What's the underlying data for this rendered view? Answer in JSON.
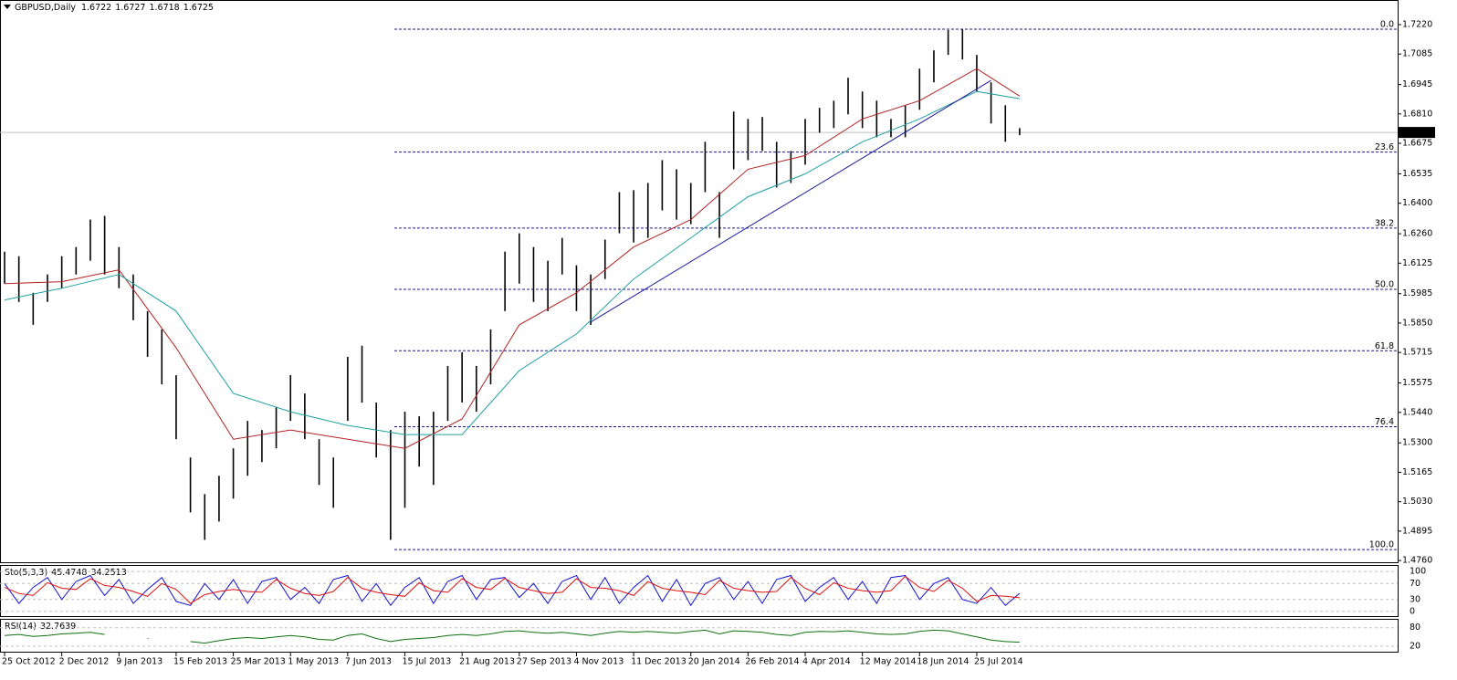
{
  "chart_data": {
    "type": "ohlc",
    "title": "GBPUSD,Daily",
    "quote": [
      1.6722,
      1.6727,
      1.6718,
      1.6725
    ],
    "color": "#000000",
    "high": [
      1.6178,
      1.6157,
      1.5989,
      1.6073,
      1.6157,
      1.6199,
      1.6325,
      1.6342,
      1.6199,
      1.6073,
      1.5905,
      1.5821,
      1.5611,
      1.5233,
      1.5065,
      1.5149,
      1.5275,
      1.5401,
      1.5359,
      1.5464,
      1.5611,
      1.5527,
      1.5317,
      1.5233,
      1.5695,
      1.5746,
      1.5485,
      1.5359,
      1.5443,
      1.5422,
      1.5443,
      1.5653,
      1.5716,
      1.5653,
      1.5821,
      1.6178,
      1.6262,
      1.6199,
      1.6136,
      1.6241,
      1.6115,
      1.6073,
      1.6233,
      1.6451,
      1.646,
      1.6493,
      1.6598,
      1.6556,
      1.6493,
      1.6682,
      1.6451,
      1.6821,
      1.6787,
      1.6796,
      1.6682,
      1.664,
      1.6787,
      1.6838,
      1.6871,
      1.6976,
      1.6913,
      1.6871,
      1.6787,
      1.685,
      1.7018,
      1.7102,
      1.7195,
      1.7199,
      1.7081,
      1.6955,
      1.685,
      1.6745
    ],
    "low": [
      1.6031,
      1.5947,
      1.5842,
      1.5947,
      1.601,
      1.6073,
      1.6136,
      1.6073,
      1.601,
      1.5863,
      1.5695,
      1.5569,
      1.5317,
      1.4981,
      1.4855,
      1.4939,
      1.5044,
      1.5149,
      1.5212,
      1.5275,
      1.5401,
      1.5317,
      1.5107,
      1.5002,
      1.5401,
      1.5485,
      1.5233,
      1.4855,
      1.5002,
      1.5191,
      1.5107,
      1.5401,
      1.5485,
      1.5443,
      1.5569,
      1.5905,
      1.6031,
      1.5947,
      1.5905,
      1.6073,
      1.5905,
      1.5842,
      1.6052,
      1.6262,
      1.622,
      1.6241,
      1.6367,
      1.6325,
      1.6304,
      1.6451,
      1.6241,
      1.6556,
      1.6598,
      1.664,
      1.6472,
      1.6493,
      1.6577,
      1.6724,
      1.6745,
      1.6808,
      1.6745,
      1.6703,
      1.6703,
      1.6703,
      1.6829,
      1.6955,
      1.7081,
      1.706,
      1.6913,
      1.6766,
      1.6682,
      1.6712
    ],
    "xlim": [
      -0.32,
      97.44
    ],
    "xticks": [
      {
        "value": 0,
        "label": "25 Oct 2012"
      },
      {
        "value": 4,
        "label": "2 Dec 2012"
      },
      {
        "value": 8,
        "label": "9 Jan 2013"
      },
      {
        "value": 12,
        "label": "15 Feb 2013"
      },
      {
        "value": 16,
        "label": "25 Mar 2013"
      },
      {
        "value": 20,
        "label": "1 May 2013"
      },
      {
        "value": 24,
        "label": "7 Jun 2013"
      },
      {
        "value": 28,
        "label": "15 Jul 2013"
      },
      {
        "value": 32,
        "label": "21 Aug 2013"
      },
      {
        "value": 36,
        "label": "27 Sep 2013"
      },
      {
        "value": 40,
        "label": "4 Nov 2013"
      },
      {
        "value": 44,
        "label": "11 Dec 2013"
      },
      {
        "value": 48,
        "label": "20 Jan 2014"
      },
      {
        "value": 52,
        "label": "26 Feb 2014"
      },
      {
        "value": 56,
        "label": "4 Apr 2014"
      },
      {
        "value": 60,
        "label": "12 May 2014"
      },
      {
        "value": 64,
        "label": "18 Jun 2014"
      },
      {
        "value": 68,
        "label": "25 Jul 2014"
      }
    ],
    "ylim": [
      1.4752,
      1.7333
    ],
    "yticks": [
      {
        "value": 1.722,
        "label": "1.7220"
      },
      {
        "value": 1.7085,
        "label": "1.7085"
      },
      {
        "value": 1.6945,
        "label": "1.6945"
      },
      {
        "value": 1.681,
        "label": "1.6810"
      },
      {
        "value": 1.6675,
        "label": "1.6675"
      },
      {
        "value": 1.6535,
        "label": "1.6535"
      },
      {
        "value": 1.64,
        "label": "1.6400"
      },
      {
        "value": 1.626,
        "label": "1.6260"
      },
      {
        "value": 1.6125,
        "label": "1.6125"
      },
      {
        "value": 1.5985,
        "label": "1.5985"
      },
      {
        "value": 1.585,
        "label": "1.5850"
      },
      {
        "value": 1.5715,
        "label": "1.5715"
      },
      {
        "value": 1.5575,
        "label": "1.5575"
      },
      {
        "value": 1.544,
        "label": "1.5440"
      },
      {
        "value": 1.53,
        "label": "1.5300"
      },
      {
        "value": 1.5165,
        "label": "1.5165"
      },
      {
        "value": 1.503,
        "label": "1.5030"
      },
      {
        "value": 1.4895,
        "label": "1.4895"
      },
      {
        "value": 1.476,
        "label": "1.4760"
      }
    ],
    "current_price": 1.6725,
    "fib_color": "#1a1a9a",
    "fib_levels": [
      {
        "label": "0.0",
        "value": 1.7199
      },
      {
        "label": "23.6",
        "value": 1.6635
      },
      {
        "label": "38.2",
        "value": 1.6286
      },
      {
        "label": "50.0",
        "value": 1.6005
      },
      {
        "label": "61.8",
        "value": 1.5723
      },
      {
        "label": "76.4",
        "value": 1.5374
      },
      {
        "label": "100.0",
        "value": 1.481
      }
    ],
    "series": [
      {
        "color": "#b22222",
        "x": [
          0,
          4,
          8,
          12,
          16,
          20,
          24,
          28,
          32,
          36,
          40,
          44,
          48,
          52,
          56,
          60,
          64,
          68,
          71
        ],
        "values": [
          1.6031,
          1.604,
          1.6094,
          1.5737,
          1.5317,
          1.5359,
          1.5317,
          1.5275,
          1.541,
          1.5842,
          1.5989,
          1.6199,
          1.6325,
          1.6556,
          1.6619,
          1.6787,
          1.6871,
          1.7018,
          1.6892
        ]
      },
      {
        "color": "#20a0a0",
        "x": [
          0,
          4,
          8,
          12,
          16,
          20,
          24,
          28,
          32,
          36,
          40,
          44,
          48,
          52,
          56,
          60,
          64,
          68,
          71
        ],
        "values": [
          1.5956,
          1.601,
          1.6073,
          1.5905,
          1.5527,
          1.5443,
          1.538,
          1.5338,
          1.5338,
          1.5632,
          1.58,
          1.6052,
          1.6241,
          1.643,
          1.6535,
          1.6682,
          1.6787,
          1.6913,
          1.688
        ]
      }
    ],
    "trendline": {
      "color": "#1a1a9a",
      "x": [
        41,
        69
      ],
      "values": [
        1.5855,
        1.6964
      ]
    },
    "stochastic": {
      "title": "Sto(5,3,3)",
      "readings": [
        45.4748,
        34.2513
      ],
      "ylim": [
        -14,
        114
      ],
      "yticks": [
        100,
        70,
        30,
        0
      ],
      "series": [
        {
          "color": "#1010d0",
          "values": [
            70,
            20,
            60,
            85,
            30,
            75,
            90,
            40,
            80,
            20,
            55,
            85,
            25,
            15,
            70,
            30,
            80,
            20,
            75,
            85,
            30,
            60,
            20,
            80,
            90,
            25,
            70,
            15,
            60,
            85,
            20,
            75,
            90,
            30,
            80,
            85,
            35,
            70,
            20,
            75,
            90,
            30,
            85,
            20,
            60,
            90,
            25,
            80,
            15,
            70,
            85,
            30,
            75,
            20,
            80,
            90,
            25,
            60,
            85,
            30,
            75,
            20,
            85,
            90,
            30,
            70,
            85,
            30,
            20,
            60,
            15,
            45.4748
          ]
        },
        {
          "color": "#e01010",
          "values": [
            60,
            45,
            40,
            72,
            58,
            55,
            82,
            65,
            60,
            50,
            38,
            70,
            55,
            20,
            42,
            50,
            55,
            50,
            48,
            80,
            58,
            45,
            40,
            50,
            85,
            58,
            48,
            42,
            38,
            72,
            52,
            48,
            82,
            60,
            55,
            83,
            60,
            52,
            45,
            48,
            82,
            60,
            58,
            52,
            40,
            75,
            58,
            52,
            48,
            42,
            78,
            58,
            52,
            48,
            50,
            85,
            58,
            42,
            72,
            58,
            52,
            48,
            52,
            88,
            60,
            50,
            78,
            58,
            25,
            40,
            38,
            34.2513
          ]
        }
      ]
    },
    "rsi": {
      "title": "RSI(14)",
      "reading": 32.7639,
      "color": "#107010",
      "ylim": [
        -1,
        106
      ],
      "yticks": [
        80,
        20
      ],
      "values": [
        55,
        58,
        52,
        55,
        60,
        62,
        65,
        58,
        null,
        null,
        45,
        null,
        null,
        35,
        30,
        38,
        45,
        48,
        45,
        50,
        55,
        50,
        42,
        40,
        55,
        60,
        45,
        35,
        42,
        45,
        48,
        55,
        58,
        55,
        60,
        68,
        70,
        65,
        62,
        65,
        60,
        55,
        62,
        68,
        65,
        68,
        65,
        62,
        68,
        72,
        60,
        70,
        68,
        65,
        58,
        55,
        65,
        68,
        67,
        70,
        65,
        60,
        58,
        60,
        68,
        72,
        70,
        60,
        50,
        40,
        35,
        32.7639
      ]
    }
  }
}
